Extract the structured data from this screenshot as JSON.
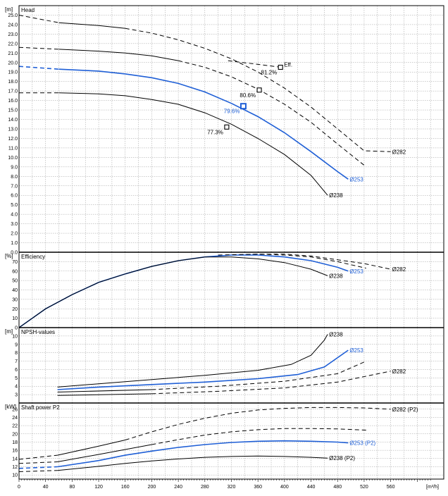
{
  "x_axis": {
    "min": 0,
    "max": 640,
    "ticks": [
      0,
      40,
      80,
      120,
      160,
      200,
      240,
      280,
      320,
      360,
      400,
      440,
      480,
      520,
      560
    ],
    "tick_labels": [
      "0",
      "40",
      "80",
      "120",
      "160",
      "200",
      "240",
      "280",
      "320",
      "360",
      "400",
      "440",
      "480",
      "520",
      "560"
    ],
    "unit": "[m³/h]"
  },
  "colors": {
    "main": "#000000",
    "highlight": "#1f5fd6",
    "grid": "#9a9a9a"
  },
  "chart_data": [
    {
      "type": "line",
      "title": "Head",
      "ylabel": "[m]",
      "ylim": [
        0,
        26
      ],
      "y_ticks": [
        0,
        1,
        2,
        3,
        4,
        5,
        6,
        7,
        8,
        9,
        10,
        11,
        12,
        13,
        14,
        15,
        16,
        17,
        18,
        19,
        20,
        21,
        22,
        23,
        24,
        25
      ],
      "y_tick_labels": [
        "0.0",
        "1.0",
        "2.0",
        "3.0",
        "4.0",
        "5.0",
        "6.0",
        "7.0",
        "8.0",
        "9.0",
        "10.0",
        "11.0",
        "12.0",
        "13.0",
        "14.0",
        "15.0",
        "16.0",
        "17.0",
        "18.0",
        "19.0",
        "20.0",
        "21.0",
        "22.0",
        "23.0",
        "24.0",
        "25.0"
      ],
      "series": [
        {
          "name": "Ø282",
          "color": "#000000",
          "dashed": [
            [
              0,
              25.0
            ],
            [
              60,
              24.2
            ]
          ],
          "solid": [
            [
              60,
              24.2
            ],
            [
              120,
              23.9
            ],
            [
              160,
              23.6
            ]
          ],
          "dashed_tail": [
            [
              160,
              23.6
            ],
            [
              200,
              23.1
            ],
            [
              240,
              22.4
            ],
            [
              280,
              21.5
            ],
            [
              320,
              20.4
            ],
            [
              360,
              19.0
            ],
            [
              400,
              17.3
            ],
            [
              440,
              15.3
            ],
            [
              480,
              13.0
            ],
            [
              520,
              10.7
            ],
            [
              560,
              10.6
            ]
          ]
        },
        {
          "name": "Ø253",
          "color": "#1f5fd6",
          "dashed": [
            [
              0,
              19.6
            ],
            [
              60,
              19.3
            ]
          ],
          "solid": [
            [
              60,
              19.3
            ],
            [
              120,
              19.1
            ],
            [
              160,
              18.8
            ],
            [
              200,
              18.4
            ],
            [
              240,
              17.8
            ],
            [
              280,
              16.9
            ],
            [
              320,
              15.7
            ],
            [
              360,
              14.3
            ],
            [
              400,
              12.6
            ],
            [
              440,
              10.6
            ],
            [
              480,
              8.5
            ],
            [
              496,
              7.7
            ]
          ]
        },
        {
          "name": "Ø238",
          "color": "#000000",
          "dashed": [
            [
              0,
              16.8
            ],
            [
              60,
              16.8
            ]
          ],
          "solid": [
            [
              60,
              16.8
            ],
            [
              120,
              16.7
            ],
            [
              160,
              16.5
            ],
            [
              200,
              16.1
            ],
            [
              240,
              15.6
            ],
            [
              280,
              14.7
            ],
            [
              320,
              13.5
            ],
            [
              360,
              12.0
            ],
            [
              400,
              10.3
            ],
            [
              440,
              8.1
            ],
            [
              465,
              6.0
            ]
          ]
        },
        {
          "name": "",
          "color": "#000000",
          "dashed": [
            [
              0,
              21.6
            ],
            [
              60,
              21.4
            ]
          ],
          "solid": [
            [
              60,
              21.4
            ],
            [
              120,
              21.2
            ],
            [
              160,
              21.0
            ],
            [
              200,
              20.7
            ],
            [
              240,
              20.2
            ]
          ],
          "dashed_tail": [
            [
              240,
              20.2
            ],
            [
              280,
              19.5
            ],
            [
              320,
              18.5
            ],
            [
              360,
              17.2
            ],
            [
              400,
              15.6
            ],
            [
              440,
              13.7
            ],
            [
              480,
              11.4
            ],
            [
              523,
              9.0
            ]
          ]
        },
        {
          "name": "Eff.",
          "color": "#000000",
          "dashed_tail": [
            [
              315,
              20.2
            ],
            [
              395,
              19.5
            ]
          ]
        }
      ],
      "markers": [
        {
          "x": 394,
          "y": 19.5,
          "label": "81.2%",
          "label2": "Eff.",
          "color": "#000000"
        },
        {
          "x": 362,
          "y": 17.1,
          "label": "80.6%",
          "color": "#000000"
        },
        {
          "x": 338,
          "y": 15.4,
          "label": "79.6%",
          "color": "#1f5fd6"
        },
        {
          "x": 313,
          "y": 13.2,
          "label": "77.3%",
          "color": "#000000"
        }
      ]
    },
    {
      "type": "line",
      "title": "Efficiency",
      "ylabel": "[%]",
      "ylim": [
        0,
        80
      ],
      "y_ticks": [
        0,
        10,
        20,
        30,
        40,
        50,
        60,
        70
      ],
      "y_tick_labels": [
        "0",
        "10",
        "20",
        "30",
        "40",
        "50",
        "60",
        "70"
      ],
      "series": [
        {
          "name": "Ø282",
          "color": "#000000",
          "solid": [
            [
              0,
              0
            ],
            [
              40,
              20
            ],
            [
              80,
              35
            ],
            [
              120,
              48
            ],
            [
              160,
              57
            ],
            [
              200,
              65
            ],
            [
              240,
              71
            ],
            [
              280,
              75
            ],
            [
              320,
              77
            ]
          ],
          "dashed_tail": [
            [
              320,
              77
            ],
            [
              360,
              78
            ],
            [
              400,
              78
            ],
            [
              440,
              76
            ],
            [
              480,
              72
            ],
            [
              520,
              68
            ],
            [
              560,
              62
            ]
          ]
        },
        {
          "name": "Ø253",
          "color": "#1f5fd6",
          "solid": [
            [
              0,
              0
            ],
            [
              40,
              20
            ],
            [
              80,
              35
            ],
            [
              120,
              48
            ],
            [
              160,
              57
            ],
            [
              200,
              65
            ],
            [
              240,
              71
            ],
            [
              280,
              75
            ],
            [
              320,
              77
            ],
            [
              360,
              77
            ],
            [
              400,
              75
            ],
            [
              440,
              71
            ],
            [
              480,
              64
            ],
            [
              496,
              60
            ]
          ]
        },
        {
          "name": "Ø238",
          "color": "#000000",
          "solid": [
            [
              0,
              0
            ],
            [
              40,
              20
            ],
            [
              80,
              35
            ],
            [
              120,
              48
            ],
            [
              160,
              57
            ],
            [
              200,
              65
            ],
            [
              240,
              71
            ],
            [
              280,
              75
            ],
            [
              320,
              75
            ],
            [
              360,
              73
            ],
            [
              400,
              69
            ],
            [
              440,
              62
            ],
            [
              465,
              55
            ]
          ]
        },
        {
          "name": "",
          "color": "#000000",
          "dashed_tail": [
            [
              300,
              77
            ],
            [
              360,
              78
            ],
            [
              400,
              77
            ],
            [
              440,
              75
            ],
            [
              480,
              70
            ],
            [
              523,
              63
            ]
          ]
        }
      ]
    },
    {
      "type": "line",
      "title": "NPSH-values",
      "ylabel": "[m]",
      "ylim": [
        2,
        11
      ],
      "y_ticks": [
        3,
        4,
        5,
        6,
        7,
        8,
        9,
        10
      ],
      "y_tick_labels": [
        "3",
        "4",
        "5",
        "6",
        "7",
        "8",
        "9",
        "10"
      ],
      "series": [
        {
          "name": "Ø238",
          "color": "#000000",
          "solid": [
            [
              58,
              3.9
            ],
            [
              120,
              4.3
            ],
            [
              200,
              4.8
            ],
            [
              280,
              5.3
            ],
            [
              360,
              5.9
            ],
            [
              410,
              6.6
            ],
            [
              440,
              7.7
            ],
            [
              460,
              9.5
            ],
            [
              465,
              10.2
            ]
          ]
        },
        {
          "name": "Ø253",
          "color": "#1f5fd6",
          "solid": [
            [
              58,
              3.6
            ],
            [
              120,
              3.9
            ],
            [
              200,
              4.2
            ],
            [
              280,
              4.5
            ],
            [
              360,
              4.9
            ],
            [
              420,
              5.4
            ],
            [
              460,
              6.3
            ],
            [
              496,
              8.3
            ]
          ]
        },
        {
          "name": "",
          "color": "#000000",
          "solid": [
            [
              58,
              3.3
            ],
            [
              200,
              3.6
            ]
          ],
          "dashed_tail": [
            [
              200,
              3.6
            ],
            [
              300,
              4.0
            ],
            [
              400,
              4.6
            ],
            [
              480,
              5.5
            ],
            [
              523,
              7.0
            ]
          ]
        },
        {
          "name": "Ø282",
          "color": "#000000",
          "solid": [
            [
              58,
              2.9
            ],
            [
              200,
              3.1
            ]
          ],
          "dashed_tail": [
            [
              200,
              3.1
            ],
            [
              300,
              3.4
            ],
            [
              400,
              3.8
            ],
            [
              480,
              4.5
            ],
            [
              560,
              5.8
            ]
          ]
        }
      ]
    },
    {
      "type": "line",
      "title": "Shaft power P2",
      "ylabel": "[kW]",
      "ylim": [
        9,
        27.5
      ],
      "y_ticks": [
        10,
        12,
        14,
        16,
        18,
        20,
        22,
        24,
        26
      ],
      "y_tick_labels": [
        "10",
        "12",
        "14",
        "16",
        "18",
        "20",
        "22",
        "24",
        "26"
      ],
      "series": [
        {
          "name": "Ø282 (P2)",
          "color": "#000000",
          "dashed": [
            [
              0,
              13.8
            ],
            [
              58,
              14.8
            ]
          ],
          "solid": [
            [
              58,
              14.8
            ],
            [
              120,
              17.0
            ],
            [
              160,
              18.5
            ]
          ],
          "dashed_tail": [
            [
              160,
              18.5
            ],
            [
              200,
              20.5
            ],
            [
              240,
              22.3
            ],
            [
              280,
              23.8
            ],
            [
              320,
              25.0
            ],
            [
              360,
              25.8
            ],
            [
              400,
              26.2
            ],
            [
              440,
              26.4
            ],
            [
              480,
              26.4
            ],
            [
              520,
              26.3
            ],
            [
              560,
              26.0
            ]
          ]
        },
        {
          "name": "Ø253 (P2)",
          "color": "#1f5fd6",
          "dashed": [
            [
              0,
              11.6
            ],
            [
              58,
              12.0
            ]
          ],
          "solid": [
            [
              58,
              12.0
            ],
            [
              120,
              13.5
            ],
            [
              160,
              14.8
            ],
            [
              200,
              15.8
            ],
            [
              240,
              16.7
            ],
            [
              280,
              17.4
            ],
            [
              320,
              17.9
            ],
            [
              360,
              18.2
            ],
            [
              400,
              18.3
            ],
            [
              440,
              18.2
            ],
            [
              480,
              18.0
            ],
            [
              496,
              17.8
            ]
          ]
        },
        {
          "name": "Ø238 (P2)",
          "color": "#000000",
          "dashed": [
            [
              0,
              10.8
            ],
            [
              58,
              11.1
            ]
          ],
          "solid": [
            [
              58,
              11.1
            ],
            [
              120,
              12.1
            ],
            [
              160,
              12.8
            ],
            [
              200,
              13.4
            ],
            [
              240,
              13.9
            ],
            [
              280,
              14.3
            ],
            [
              320,
              14.5
            ],
            [
              360,
              14.6
            ],
            [
              400,
              14.5
            ],
            [
              440,
              14.3
            ],
            [
              465,
              14.1
            ]
          ]
        },
        {
          "name": "",
          "color": "#000000",
          "dashed": [
            [
              0,
              12.8
            ],
            [
              58,
              13.2
            ]
          ],
          "solid": [
            [
              58,
              13.2
            ],
            [
              120,
              15.0
            ],
            [
              160,
              16.2
            ],
            [
              200,
              17.4
            ]
          ],
          "dashed_tail": [
            [
              200,
              17.4
            ],
            [
              240,
              18.6
            ],
            [
              280,
              19.7
            ],
            [
              320,
              20.5
            ],
            [
              360,
              21.0
            ],
            [
              400,
              21.3
            ],
            [
              440,
              21.3
            ],
            [
              480,
              21.2
            ],
            [
              523,
              20.9
            ]
          ]
        }
      ]
    }
  ]
}
